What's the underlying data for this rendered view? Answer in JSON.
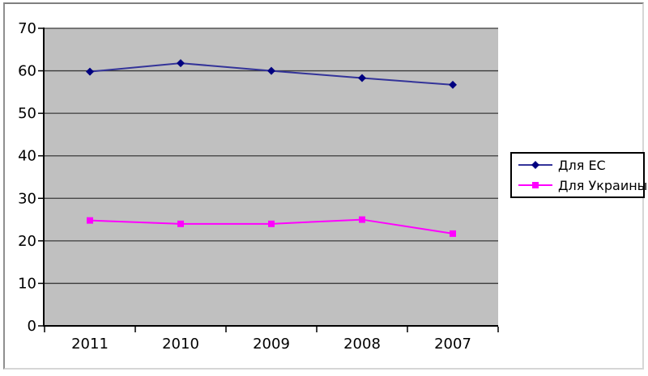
{
  "chart_data": {
    "type": "line",
    "categories": [
      "2011",
      "2010",
      "2009",
      "2008",
      "2007"
    ],
    "series": [
      {
        "name": "Для ЕС",
        "values": [
          59.8,
          61.8,
          60.0,
          58.3,
          56.7
        ],
        "line_color": "#333399",
        "marker_color": "#000080",
        "marker": "diamond"
      },
      {
        "name": "Для Украины",
        "values": [
          24.8,
          24.0,
          24.0,
          25.0,
          21.7
        ],
        "line_color": "#ff00ff",
        "marker_color": "#ff00ff",
        "marker": "square"
      }
    ],
    "title": "",
    "xlabel": "",
    "ylabel": "",
    "ylim": [
      0,
      70
    ],
    "ytick_step": 10,
    "yticks": [
      0,
      10,
      20,
      30,
      40,
      50,
      60,
      70
    ],
    "grid": true,
    "legend_position": "right",
    "plot_bg_color": "#c0c0c0",
    "grid_color": "#3a3a3a",
    "axis_color": "#000000",
    "label_color": "#000000"
  }
}
